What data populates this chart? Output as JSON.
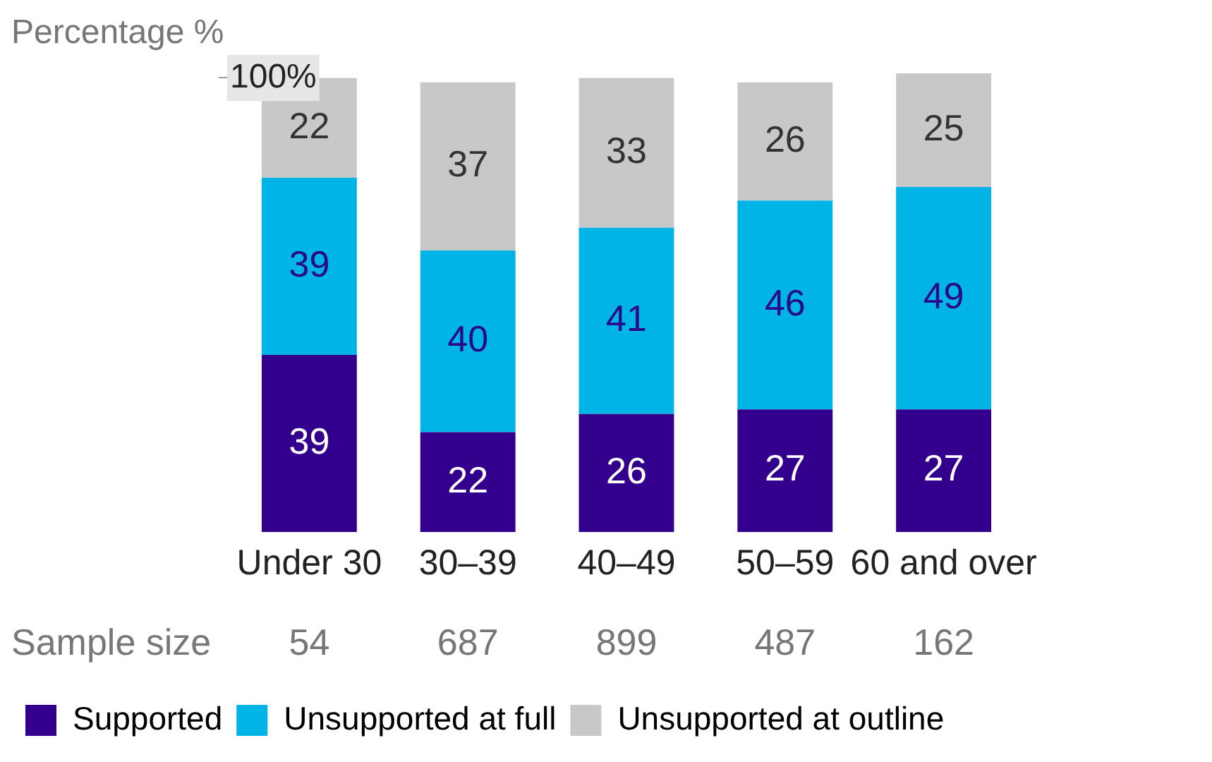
{
  "chart_data": {
    "type": "bar",
    "stacked": true,
    "ylabel": "Percentage %",
    "categories": [
      "Under 30",
      "30–39",
      "40–49",
      "50–59",
      "60 and over"
    ],
    "series": [
      {
        "name": "Supported",
        "color": "#32008c",
        "values": [
          39,
          22,
          26,
          27,
          27
        ]
      },
      {
        "name": "Unsupported at full",
        "color": "#00b4e8",
        "values": [
          39,
          40,
          41,
          46,
          49
        ]
      },
      {
        "name": "Unsupported at outline",
        "color": "#c8c8c8",
        "values": [
          22,
          37,
          33,
          26,
          25
        ]
      }
    ],
    "ylim": [
      0,
      101
    ],
    "yticks": [
      {
        "value": 100,
        "label": "100%"
      }
    ],
    "grid": false,
    "legend": "bottom left",
    "data_labels": true,
    "annotations": [
      "Sample size",
      "54",
      "687",
      "899",
      "487",
      "162"
    ]
  }
}
